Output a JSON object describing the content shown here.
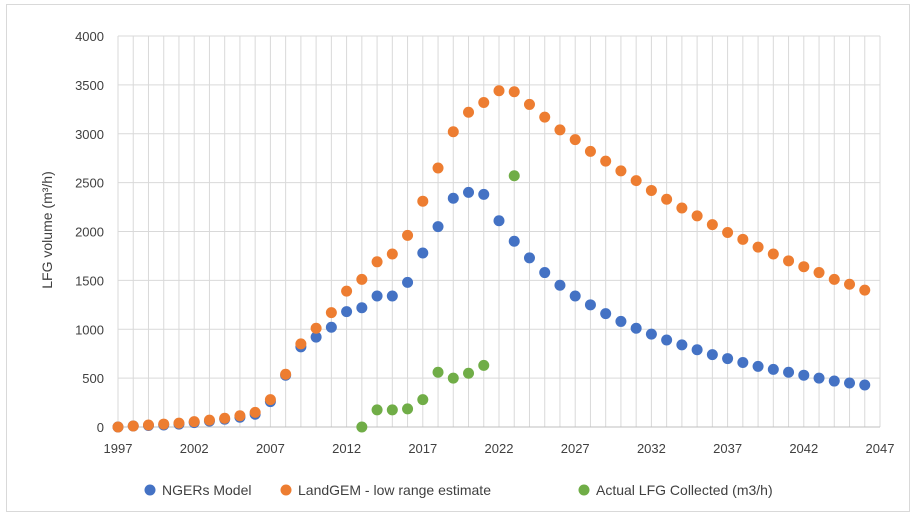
{
  "chart_data": {
    "type": "scatter",
    "title": "",
    "xlabel": "",
    "ylabel": "LFG volume (m³/h)",
    "xlim": [
      1997,
      2047
    ],
    "ylim": [
      0,
      4000
    ],
    "x_ticks": [
      1997,
      2002,
      2007,
      2012,
      2017,
      2022,
      2027,
      2032,
      2037,
      2042,
      2047
    ],
    "y_ticks": [
      0,
      500,
      1000,
      1500,
      2000,
      2500,
      3000,
      3500,
      4000
    ],
    "grid": true,
    "legend_position": "bottom",
    "series": [
      {
        "name": "NGERs Model",
        "color": "#4472C4",
        "x": [
          1997,
          1998,
          1999,
          2000,
          2001,
          2002,
          2003,
          2004,
          2005,
          2006,
          2007,
          2008,
          2009,
          2010,
          2011,
          2012,
          2013,
          2014,
          2015,
          2016,
          2017,
          2018,
          2019,
          2020,
          2021,
          2022,
          2023,
          2024,
          2025,
          2026,
          2027,
          2028,
          2029,
          2030,
          2031,
          2032,
          2033,
          2034,
          2035,
          2036,
          2037,
          2038,
          2039,
          2040,
          2041,
          2042,
          2043,
          2044,
          2045,
          2046
        ],
        "y": [
          0,
          10,
          15,
          20,
          30,
          45,
          60,
          80,
          100,
          130,
          260,
          530,
          820,
          920,
          1020,
          1180,
          1220,
          1340,
          1340,
          1480,
          1780,
          2050,
          2340,
          2400,
          2380,
          2110,
          1900,
          1730,
          1580,
          1450,
          1340,
          1250,
          1160,
          1080,
          1010,
          950,
          890,
          840,
          790,
          740,
          700,
          660,
          620,
          590,
          560,
          530,
          500,
          470,
          450,
          430
        ]
      },
      {
        "name": "LandGEM - low range estimate",
        "color": "#ED7D31",
        "x": [
          1997,
          1998,
          1999,
          2000,
          2001,
          2002,
          2003,
          2004,
          2005,
          2006,
          2007,
          2008,
          2009,
          2010,
          2011,
          2012,
          2013,
          2014,
          2015,
          2016,
          2017,
          2018,
          2019,
          2020,
          2021,
          2022,
          2023,
          2024,
          2025,
          2026,
          2027,
          2028,
          2029,
          2030,
          2031,
          2032,
          2033,
          2034,
          2035,
          2036,
          2037,
          2038,
          2039,
          2040,
          2041,
          2042,
          2043,
          2044,
          2045,
          2046
        ],
        "y": [
          0,
          10,
          20,
          30,
          40,
          55,
          70,
          90,
          115,
          150,
          280,
          540,
          850,
          1010,
          1170,
          1390,
          1510,
          1690,
          1770,
          1960,
          2310,
          2650,
          3020,
          3220,
          3320,
          3440,
          3430,
          3300,
          3170,
          3040,
          2940,
          2820,
          2720,
          2620,
          2520,
          2420,
          2330,
          2240,
          2160,
          2070,
          1990,
          1920,
          1840,
          1770,
          1700,
          1640,
          1580,
          1510,
          1460,
          1400
        ]
      },
      {
        "name": "Actual LFG Collected (m3/h)",
        "color": "#70AD47",
        "x": [
          2013,
          2014,
          2015,
          2016,
          2017,
          2018,
          2019,
          2020,
          2021,
          2023
        ],
        "y": [
          0,
          175,
          175,
          185,
          280,
          560,
          500,
          550,
          630,
          2570
        ]
      }
    ]
  }
}
